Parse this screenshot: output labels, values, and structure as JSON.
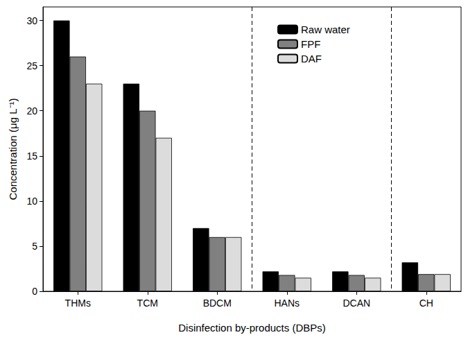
{
  "chart_data": {
    "type": "bar",
    "x_label": "Disinfection by-products (DBPs)",
    "y_label": "Concentration (μg L⁻¹)",
    "categories": [
      "THMs",
      "TCM",
      "BDCM",
      "HANs",
      "DCAN",
      "CH"
    ],
    "series": [
      {
        "name": "Raw water",
        "color": "#000000",
        "values": [
          30,
          23,
          7,
          2.2,
          2.2,
          3.2
        ]
      },
      {
        "name": "FPF",
        "color": "#808080",
        "values": [
          26,
          20,
          6,
          1.8,
          1.8,
          1.9
        ]
      },
      {
        "name": "DAF",
        "color": "#dcdcdc",
        "values": [
          23,
          17,
          6,
          1.5,
          1.5,
          1.9
        ]
      }
    ],
    "ylim": [
      0,
      31.5
    ],
    "yticks": [
      0,
      5,
      10,
      15,
      20,
      25,
      30
    ],
    "grid": false,
    "legend": "top"
  }
}
